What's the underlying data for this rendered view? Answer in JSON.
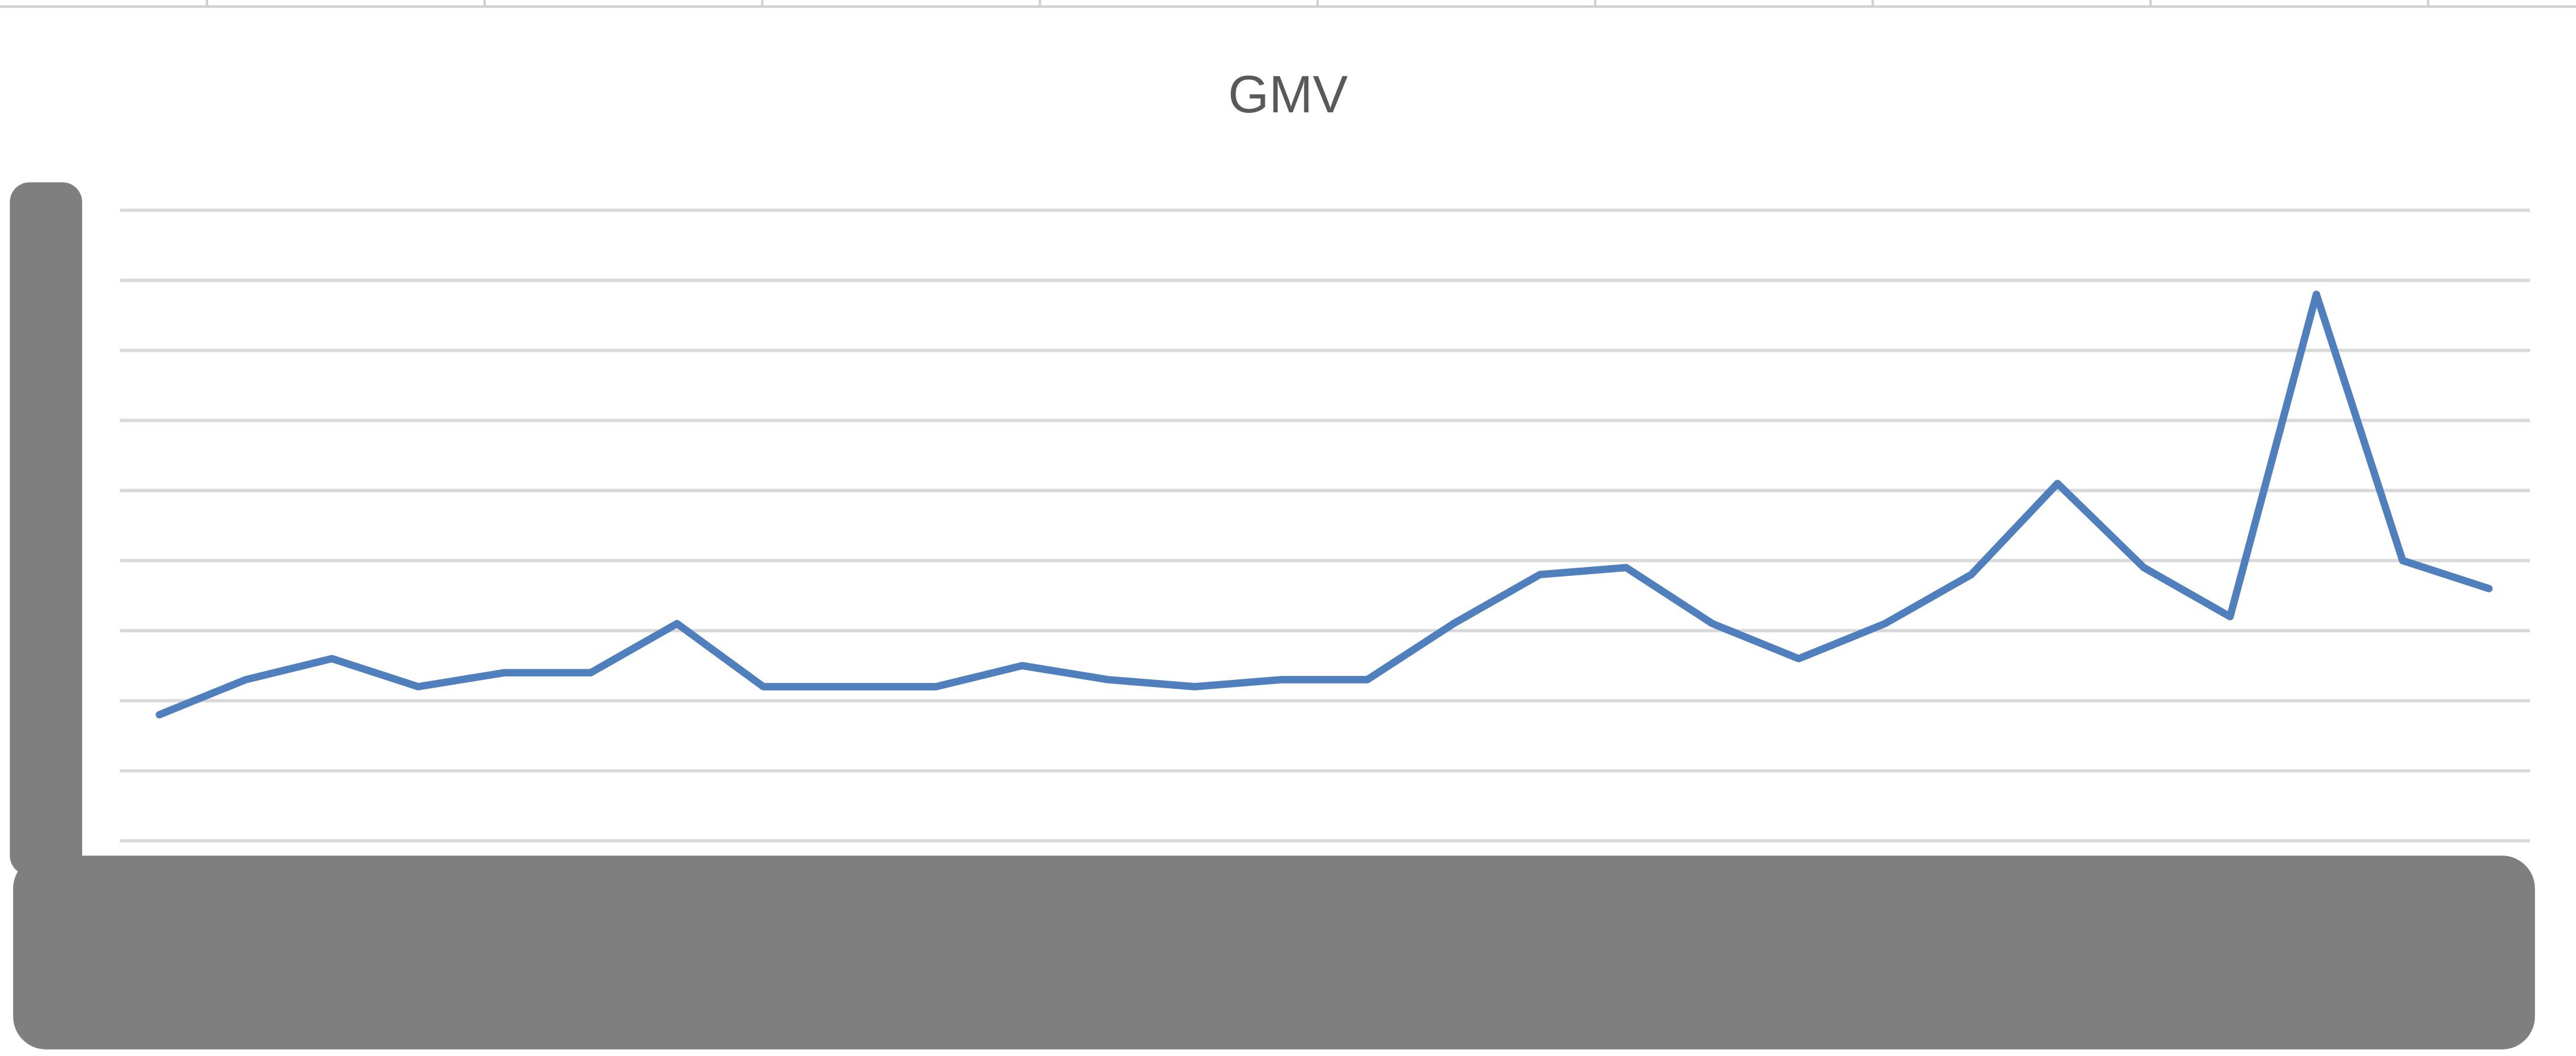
{
  "chart_data": {
    "type": "line",
    "title": "GMV",
    "categories": [
      null,
      null,
      null,
      null,
      null,
      null,
      null,
      null,
      null,
      null,
      null,
      null,
      null,
      null,
      null,
      null,
      null,
      null,
      null,
      null,
      null,
      null,
      null,
      null,
      null,
      null,
      null,
      null
    ],
    "series": [
      {
        "name": "GMV",
        "color": "#4f7fbc",
        "values": [
          1.8,
          2.3,
          2.6,
          2.2,
          2.4,
          2.4,
          3.1,
          2.2,
          2.2,
          2.2,
          2.5,
          2.3,
          2.2,
          2.3,
          2.3,
          3.1,
          3.8,
          3.9,
          3.1,
          2.6,
          3.1,
          3.8,
          5.1,
          3.9,
          3.2,
          7.8,
          4.0,
          3.6
        ]
      }
    ],
    "ylim": [
      0,
      9
    ],
    "yticks": [
      0,
      1,
      2,
      3,
      4,
      5,
      6,
      7,
      8,
      9
    ],
    "grid": true
  }
}
